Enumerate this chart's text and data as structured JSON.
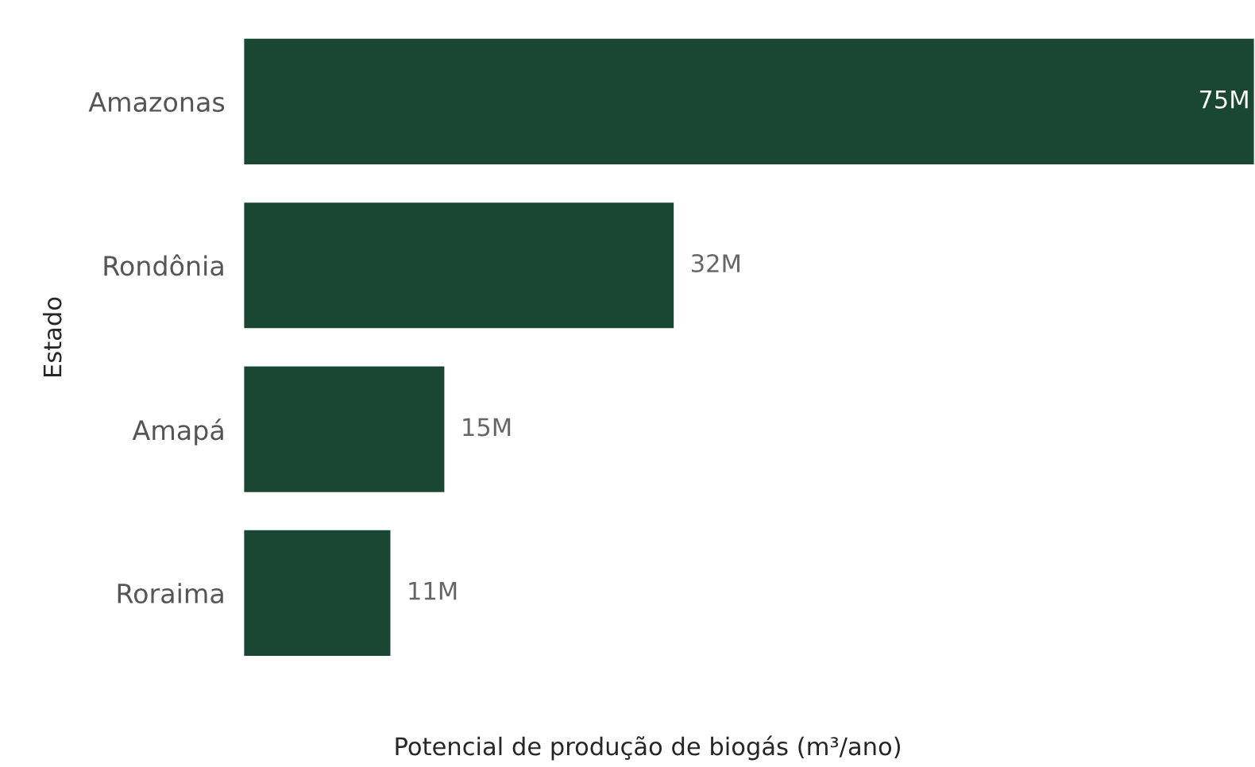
{
  "chart_data": {
    "type": "bar",
    "orientation": "horizontal",
    "xlabel": "Potencial de produção de biogás (m³/ano)",
    "ylabel": "Estado",
    "categories": [
      "Amazonas",
      "Rondônia",
      "Amapá",
      "Roraima"
    ],
    "values": [
      75,
      32,
      15,
      11
    ],
    "value_labels": [
      "75M",
      "32M",
      "15M",
      "11M"
    ],
    "color": "#1a4734",
    "grid": false,
    "legend": false
  }
}
